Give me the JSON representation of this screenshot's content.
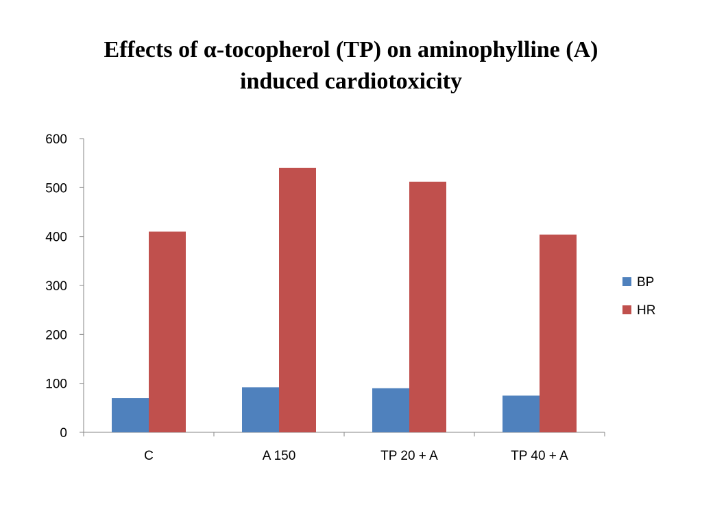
{
  "chart_data": {
    "type": "bar",
    "title_lines": [
      "Effects of α-tocopherol (TP) on aminophylline (A)",
      "induced cardiotoxicity"
    ],
    "categories": [
      "C",
      "A 150",
      "TP 20 + A",
      "TP 40 + A"
    ],
    "series": [
      {
        "name": "BP",
        "color": "#4F81BD",
        "values": [
          70,
          92,
          90,
          75
        ]
      },
      {
        "name": "HR",
        "color": "#C0504D",
        "values": [
          410,
          540,
          512,
          404
        ]
      }
    ],
    "y_ticks": [
      0,
      100,
      200,
      300,
      400,
      500,
      600
    ],
    "ylim": [
      0,
      600
    ],
    "xlabel": "",
    "ylabel": "",
    "legend_position": "right",
    "grid": false
  }
}
